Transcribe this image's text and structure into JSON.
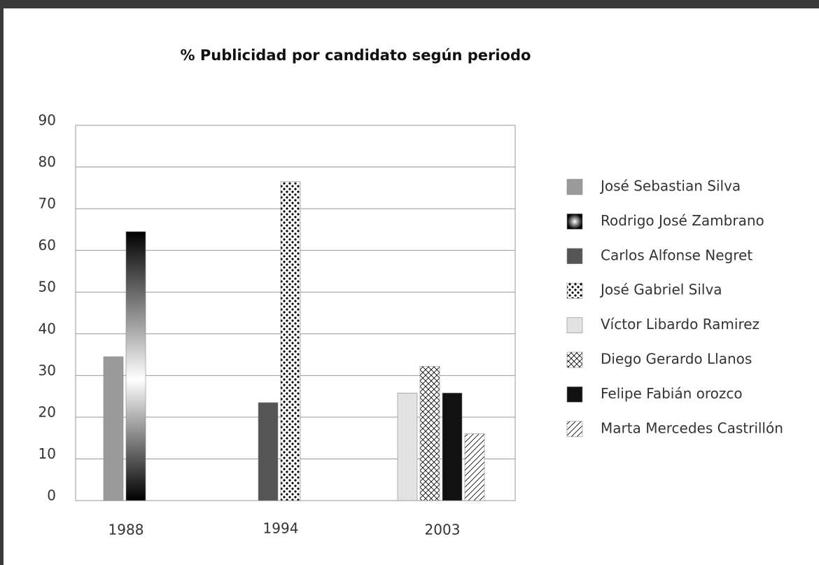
{
  "chart_data": {
    "type": "bar",
    "title": "% Publicidad por candidato según periodo",
    "categories": [
      "1988",
      "1994",
      "2003"
    ],
    "series": [
      {
        "name": "José Sebastian Silva",
        "color": "#9a9a9a",
        "values": [
          34.5,
          null,
          null
        ]
      },
      {
        "name": "Rodrigo José Zambrano",
        "color": "#000000",
        "pattern": "gradient",
        "values": [
          64.5,
          null,
          null
        ]
      },
      {
        "name": "Carlos Alfonse Negret",
        "color": "#555555",
        "values": [
          null,
          23.5,
          null
        ]
      },
      {
        "name": "José Gabriel Silva",
        "color": "#000000",
        "pattern": "dots",
        "values": [
          null,
          76.5,
          null
        ]
      },
      {
        "name": "Víctor Libardo Ramirez",
        "color": "#e2e2e2",
        "values": [
          null,
          null,
          25.8
        ]
      },
      {
        "name": "Diego Gerardo Llanos",
        "color": "#000000",
        "pattern": "crosshatch",
        "values": [
          null,
          null,
          32.2
        ]
      },
      {
        "name": "Felipe Fabián orozco",
        "color": "#111111",
        "values": [
          null,
          null,
          25.8
        ]
      },
      {
        "name": "Marta Mercedes Castrillón",
        "color": "#000000",
        "pattern": "diagonal",
        "values": [
          null,
          null,
          16
        ]
      }
    ],
    "ylim": [
      0,
      90
    ],
    "yticks": [
      0,
      10,
      20,
      30,
      40,
      50,
      60,
      70,
      80,
      90
    ],
    "grid": true,
    "legend": "right"
  }
}
